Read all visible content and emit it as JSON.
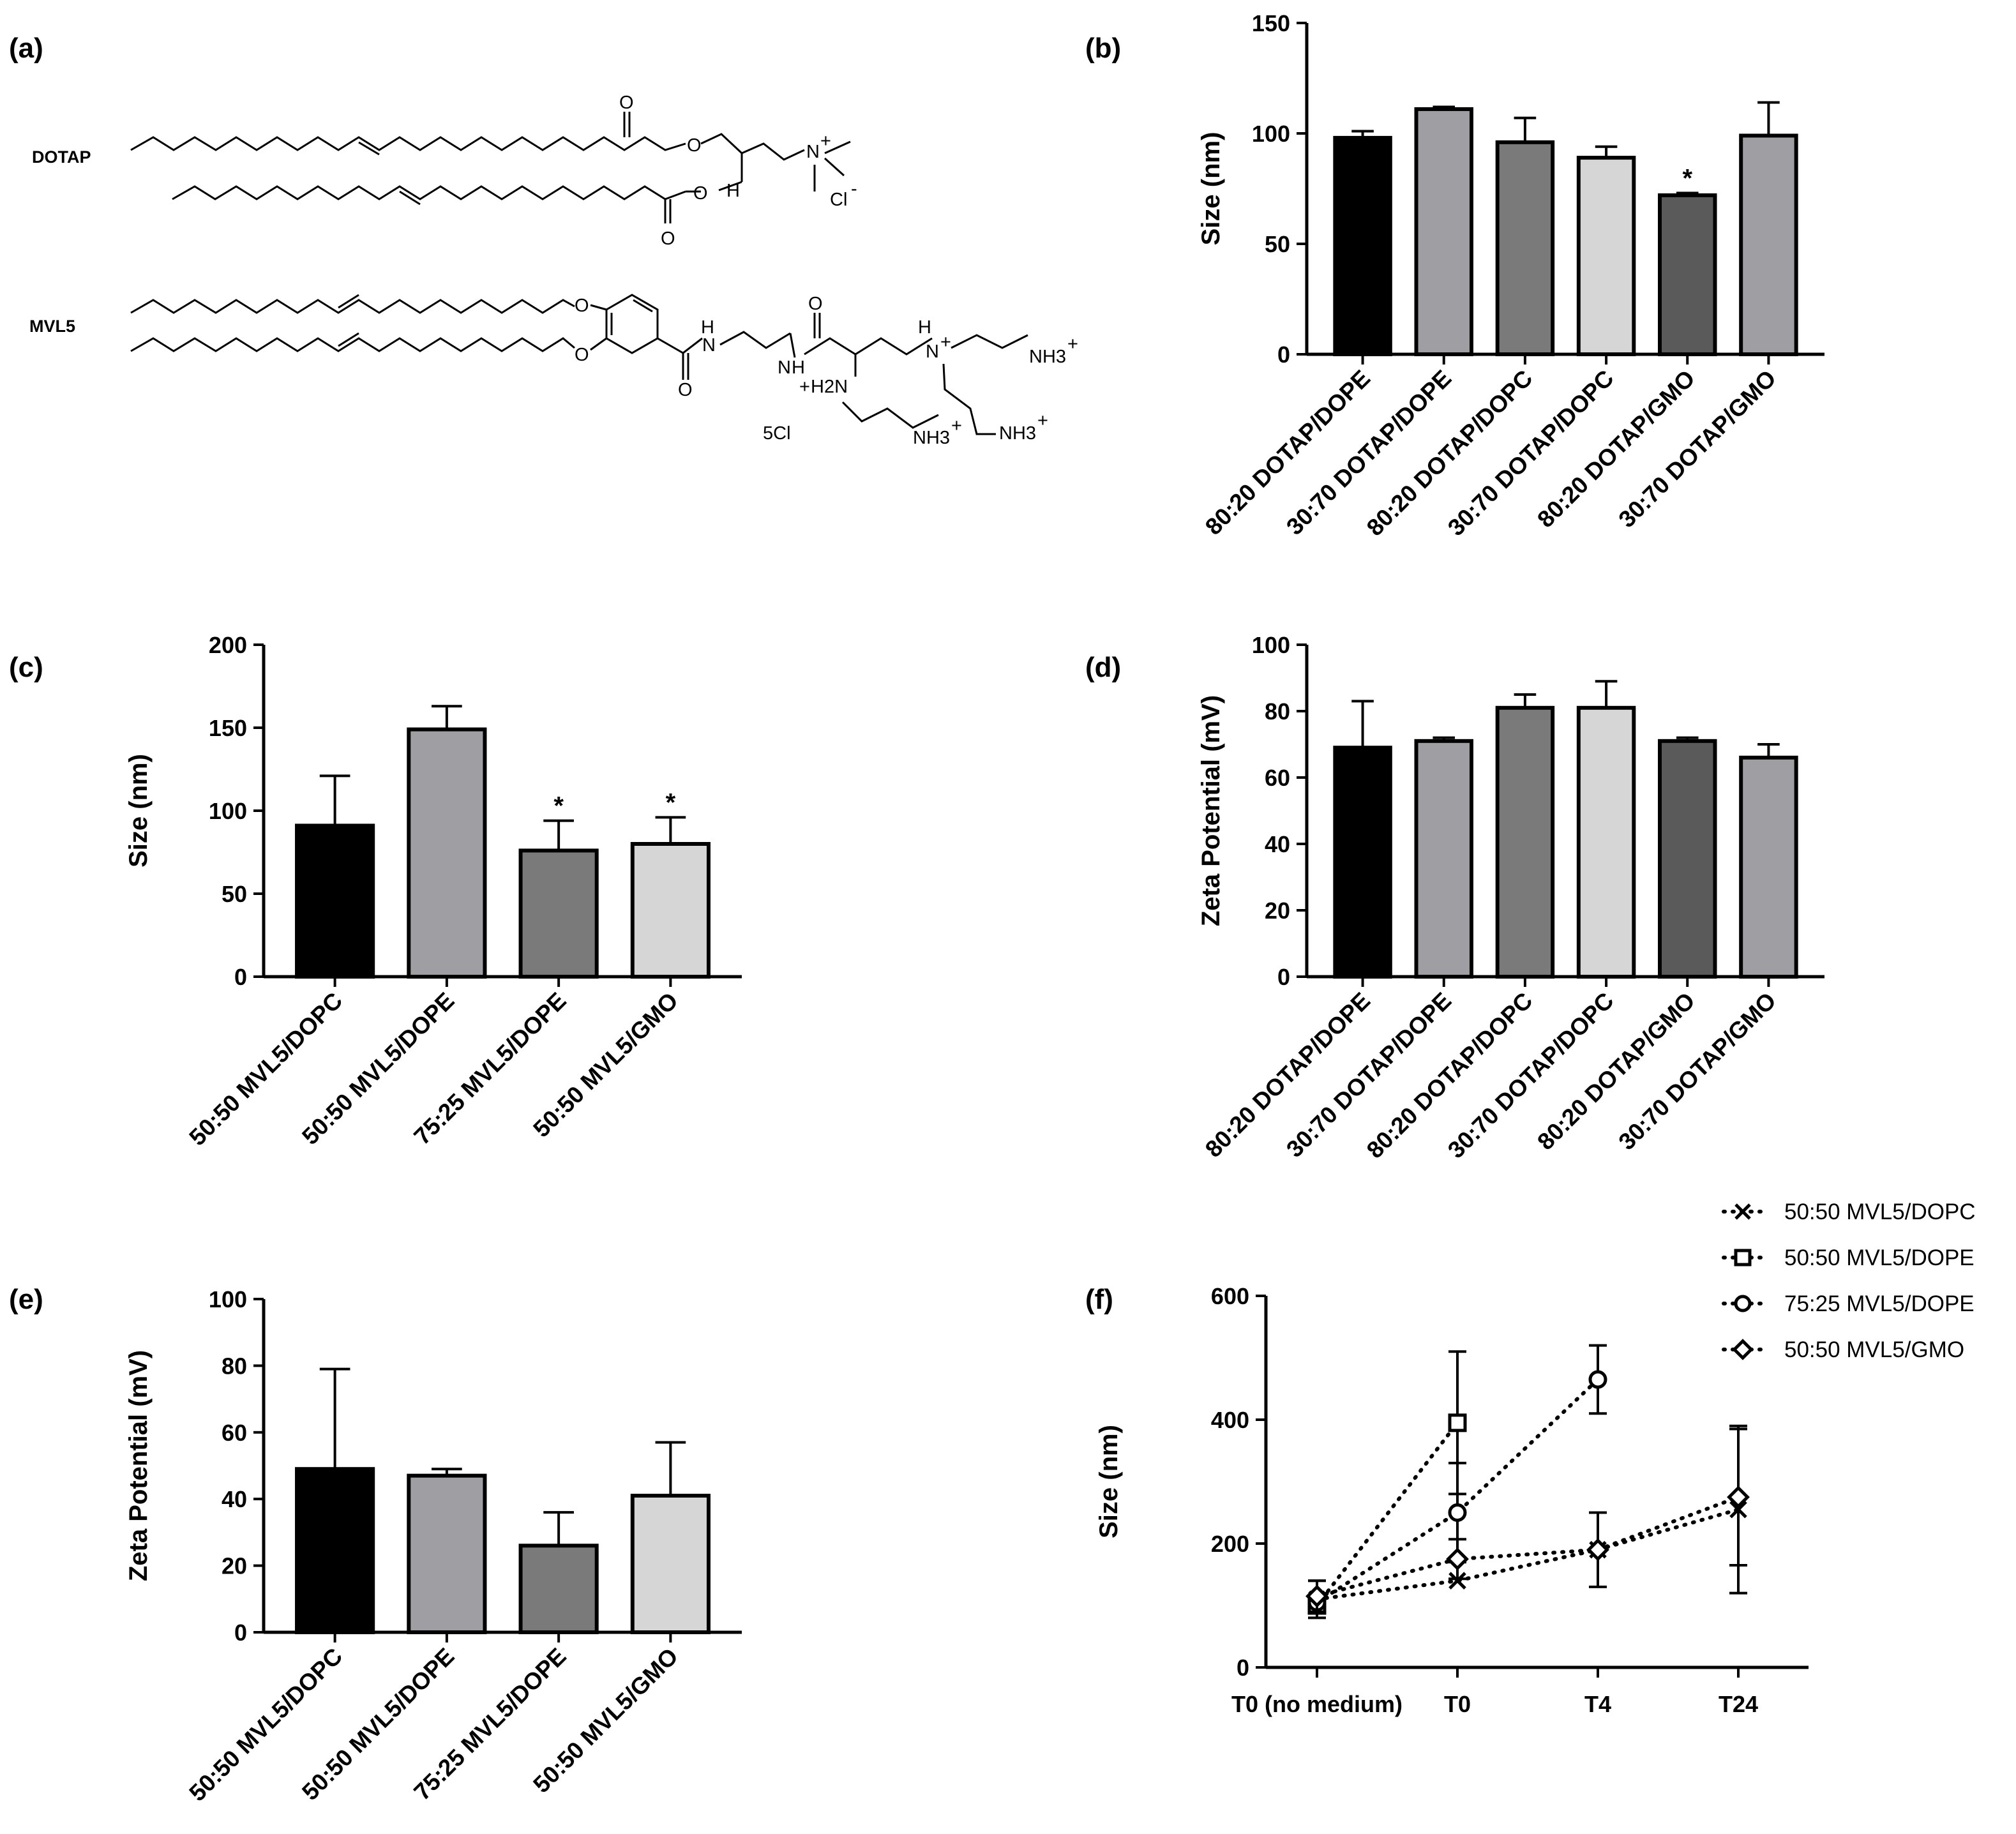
{
  "panels": {
    "a": {
      "label": "(a)",
      "molecules": [
        {
          "name": "DOTAP",
          "annotations": [
            "O",
            "O",
            "O",
            "O",
            "H",
            "N",
            "+",
            "Cl",
            "-"
          ]
        },
        {
          "name": "MVL5",
          "annotations": [
            "O",
            "O",
            "H",
            "N",
            "O",
            "N",
            "H",
            "+",
            "H2N",
            "H",
            "N",
            "+",
            "NH3",
            "+",
            "NH3",
            "+",
            "NH3",
            "+",
            "5Cl"
          ]
        }
      ]
    }
  },
  "chart_data": [
    {
      "panel": "(b)",
      "type": "bar",
      "ylabel": "Size (nm)",
      "xlabel": "",
      "ylim": [
        0,
        150
      ],
      "yticks": [
        0,
        50,
        100,
        150
      ],
      "categories": [
        "80:20 DOTAP/DOPE",
        "30:70 DOTAP/DOPE",
        "80:20 DOTAP/DOPC",
        "30:70 DOTAP/DOPC",
        "80:20 DOTAP/GMO",
        "30:70 DOTAP/GMO"
      ],
      "values": [
        98,
        111,
        96,
        89,
        72,
        99
      ],
      "errors": [
        3,
        1,
        11,
        5,
        1,
        15
      ],
      "significance": [
        "",
        "",
        "",
        "",
        "*",
        ""
      ],
      "colors": [
        "#000000",
        "#9e9ea3",
        "#7a7a7a",
        "#d6d6d6",
        "#5a5a5a",
        "#9e9ea3"
      ]
    },
    {
      "panel": "(c)",
      "type": "bar",
      "ylabel": "Size (nm)",
      "xlabel": "",
      "ylim": [
        0,
        200
      ],
      "yticks": [
        0,
        50,
        100,
        150,
        200
      ],
      "categories": [
        "50:50 MVL5/DOPC",
        "50:50 MVL5/DOPE",
        "75:25 MVL5/DOPE",
        "50:50 MVL5/GMO"
      ],
      "values": [
        91,
        149,
        76,
        80
      ],
      "errors": [
        30,
        14,
        18,
        16
      ],
      "significance": [
        "",
        "",
        "*",
        "*"
      ],
      "colors": [
        "#000000",
        "#9e9ea3",
        "#7a7a7a",
        "#d6d6d6"
      ]
    },
    {
      "panel": "(d)",
      "type": "bar",
      "ylabel": "Zeta Potential (mV)",
      "xlabel": "",
      "ylim": [
        0,
        100
      ],
      "yticks": [
        0,
        20,
        40,
        60,
        80,
        100
      ],
      "categories": [
        "80:20 DOTAP/DOPE",
        "30:70 DOTAP/DOPE",
        "80:20 DOTAP/DOPC",
        "30:70 DOTAP/DOPC",
        "80:20 DOTAP/GMO",
        "30:70 DOTAP/GMO"
      ],
      "values": [
        69,
        71,
        81,
        81,
        71,
        66
      ],
      "errors": [
        14,
        1,
        4,
        8,
        1,
        4
      ],
      "significance": [
        "",
        "",
        "",
        "",
        "",
        ""
      ],
      "colors": [
        "#000000",
        "#9e9ea3",
        "#7a7a7a",
        "#d6d6d6",
        "#5a5a5a",
        "#9e9ea3"
      ]
    },
    {
      "panel": "(e)",
      "type": "bar",
      "ylabel": "Zeta Potential (mV)",
      "xlabel": "",
      "ylim": [
        0,
        100
      ],
      "yticks": [
        0,
        20,
        40,
        60,
        80,
        100
      ],
      "categories": [
        "50:50 MVL5/DOPC",
        "50:50 MVL5/DOPE",
        "75:25 MVL5/DOPE",
        "50:50 MVL5/GMO"
      ],
      "values": [
        49,
        47,
        26,
        41
      ],
      "errors": [
        30,
        2,
        10,
        16
      ],
      "significance": [
        "",
        "",
        "",
        ""
      ],
      "colors": [
        "#000000",
        "#9e9ea3",
        "#7a7a7a",
        "#d6d6d6"
      ]
    },
    {
      "panel": "(f)",
      "type": "line",
      "ylabel": "Size (nm)",
      "xlabel": "",
      "ylim": [
        0,
        600
      ],
      "yticks": [
        0,
        200,
        400,
        600
      ],
      "categories": [
        "T0 (no medium)",
        "T0",
        "T4",
        "T24"
      ],
      "legend_position": "top-right",
      "series": [
        {
          "name": "50:50 MVL5/DOPC",
          "marker": "x",
          "values": [
            110,
            140,
            190,
            255
          ],
          "errors": [
            30,
            0,
            0,
            135
          ]
        },
        {
          "name": "50:50 MVL5/DOPE",
          "marker": "square",
          "values": [
            100,
            395,
            null,
            null
          ],
          "errors": [
            0,
            115,
            0,
            0
          ]
        },
        {
          "name": "75:25 MVL5/DOPE",
          "marker": "circle",
          "values": [
            105,
            250,
            465,
            null
          ],
          "errors": [
            0,
            80,
            55,
            0
          ]
        },
        {
          "name": "50:50 MVL5/GMO",
          "marker": "diamond",
          "values": [
            115,
            175,
            190,
            275
          ],
          "errors": [
            25,
            32,
            60,
            110
          ]
        }
      ]
    }
  ]
}
